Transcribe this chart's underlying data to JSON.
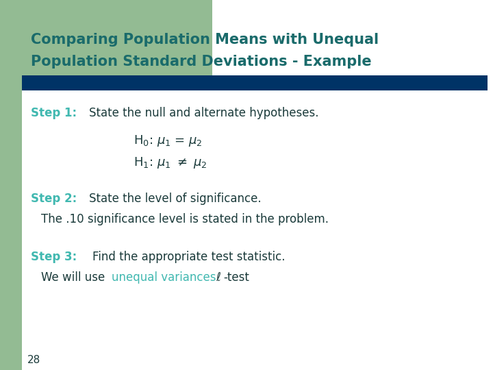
{
  "title_line1": "Comparing Population Means with Unequal",
  "title_line2": "Population Standard Deviations - Example",
  "title_color": "#1a6b6b",
  "background_color": "#ffffff",
  "left_bar_color": "#93bb93",
  "top_rect_color": "#93bb93",
  "divider_color": "#003366",
  "step1_label": "Step 1:  ",
  "step1_text": "State the null and alternate hypotheses.",
  "step2_label": "Step 2:  ",
  "step2_text": "State the level of significance.",
  "step2_subtext": "The .10 significance level is stated in the problem.",
  "step3_label": "Step 3:   ",
  "step3_text": "Find the appropriate test statistic.",
  "step3_pre": "   We will use ",
  "step3_highlight": "unequal variances",
  "step3_post": " t-test",
  "step_label_color": "#40b8b0",
  "step_text_color": "#1a3a3a",
  "highlight_color": "#40b8b0",
  "page_number": "28",
  "page_number_color": "#1a3a3a"
}
